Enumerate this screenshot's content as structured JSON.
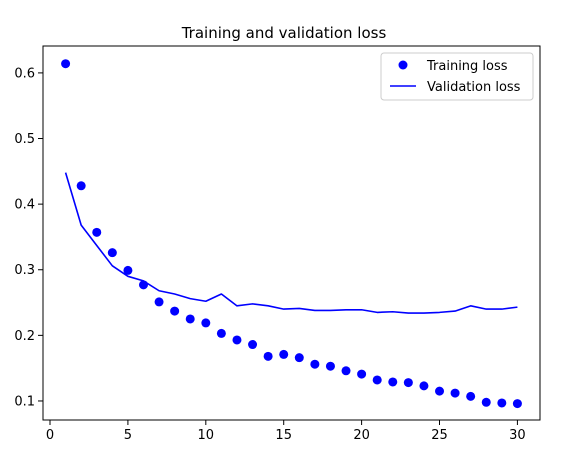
{
  "chart_data": {
    "type": "line",
    "title": "Training and validation loss",
    "xlabel": "",
    "ylabel": "",
    "xlim": [
      -0.45,
      31.45
    ],
    "ylim": [
      0.071,
      0.641
    ],
    "x_ticks": [
      0,
      5,
      10,
      15,
      20,
      25,
      30
    ],
    "x_tick_labels": [
      "0",
      "5",
      "10",
      "15",
      "20",
      "25",
      "30"
    ],
    "y_ticks": [
      0.1,
      0.2,
      0.3,
      0.4,
      0.5,
      0.6
    ],
    "y_tick_labels": [
      "0.1",
      "0.2",
      "0.3",
      "0.4",
      "0.5",
      "0.6"
    ],
    "grid": false,
    "legend_position": "top-right",
    "x": [
      1,
      2,
      3,
      4,
      5,
      6,
      7,
      8,
      9,
      10,
      11,
      12,
      13,
      14,
      15,
      16,
      17,
      18,
      19,
      20,
      21,
      22,
      23,
      24,
      25,
      26,
      27,
      28,
      29,
      30
    ],
    "series": [
      {
        "name": "Training loss",
        "style": "points",
        "color": "#0000ff",
        "values": [
          0.614,
          0.428,
          0.357,
          0.326,
          0.299,
          0.277,
          0.251,
          0.237,
          0.225,
          0.219,
          0.203,
          0.193,
          0.186,
          0.168,
          0.171,
          0.166,
          0.156,
          0.153,
          0.146,
          0.141,
          0.132,
          0.129,
          0.128,
          0.123,
          0.115,
          0.112,
          0.107,
          0.098,
          0.097,
          0.096
        ]
      },
      {
        "name": "Validation loss",
        "style": "line",
        "color": "#0000ff",
        "values": [
          0.448,
          0.368,
          0.337,
          0.306,
          0.29,
          0.283,
          0.268,
          0.263,
          0.256,
          0.252,
          0.263,
          0.245,
          0.248,
          0.245,
          0.24,
          0.241,
          0.238,
          0.238,
          0.239,
          0.239,
          0.235,
          0.236,
          0.234,
          0.234,
          0.235,
          0.237,
          0.245,
          0.24,
          0.24,
          0.243
        ]
      }
    ]
  }
}
